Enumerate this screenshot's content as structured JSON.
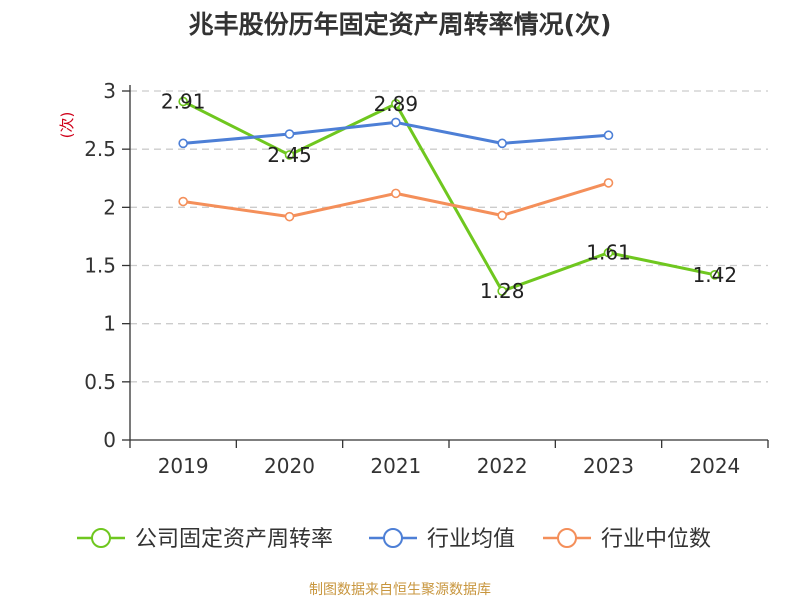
{
  "chart_data": {
    "type": "line",
    "title": "兆丰股份历年固定资产周转率情况(次)",
    "ylabel": "(次)",
    "xlabel": "",
    "categories": [
      "2019",
      "2020",
      "2021",
      "2022",
      "2023",
      "2024"
    ],
    "ylim": [
      0,
      3
    ],
    "yticks": [
      "0",
      "0.5",
      "1",
      "1.5",
      "2",
      "2.5",
      "3"
    ],
    "grid": "horizontal-dashed",
    "legend_position": "bottom",
    "series": [
      {
        "name": "公司固定资产周转率",
        "color": "#6fc71f",
        "values": [
          2.91,
          2.45,
          2.89,
          1.28,
          1.61,
          1.42
        ],
        "labels": [
          "2.91",
          "2.45",
          "2.89",
          "1.28",
          "1.61",
          "1.42"
        ]
      },
      {
        "name": "行业均值",
        "color": "#4d7fd6",
        "values": [
          2.55,
          2.63,
          2.73,
          2.55,
          2.62,
          null
        ]
      },
      {
        "name": "行业中位数",
        "color": "#f48f5a",
        "values": [
          2.05,
          1.92,
          2.12,
          1.93,
          2.21,
          null
        ]
      }
    ],
    "source": "制图数据来自恒生聚源数据库"
  }
}
